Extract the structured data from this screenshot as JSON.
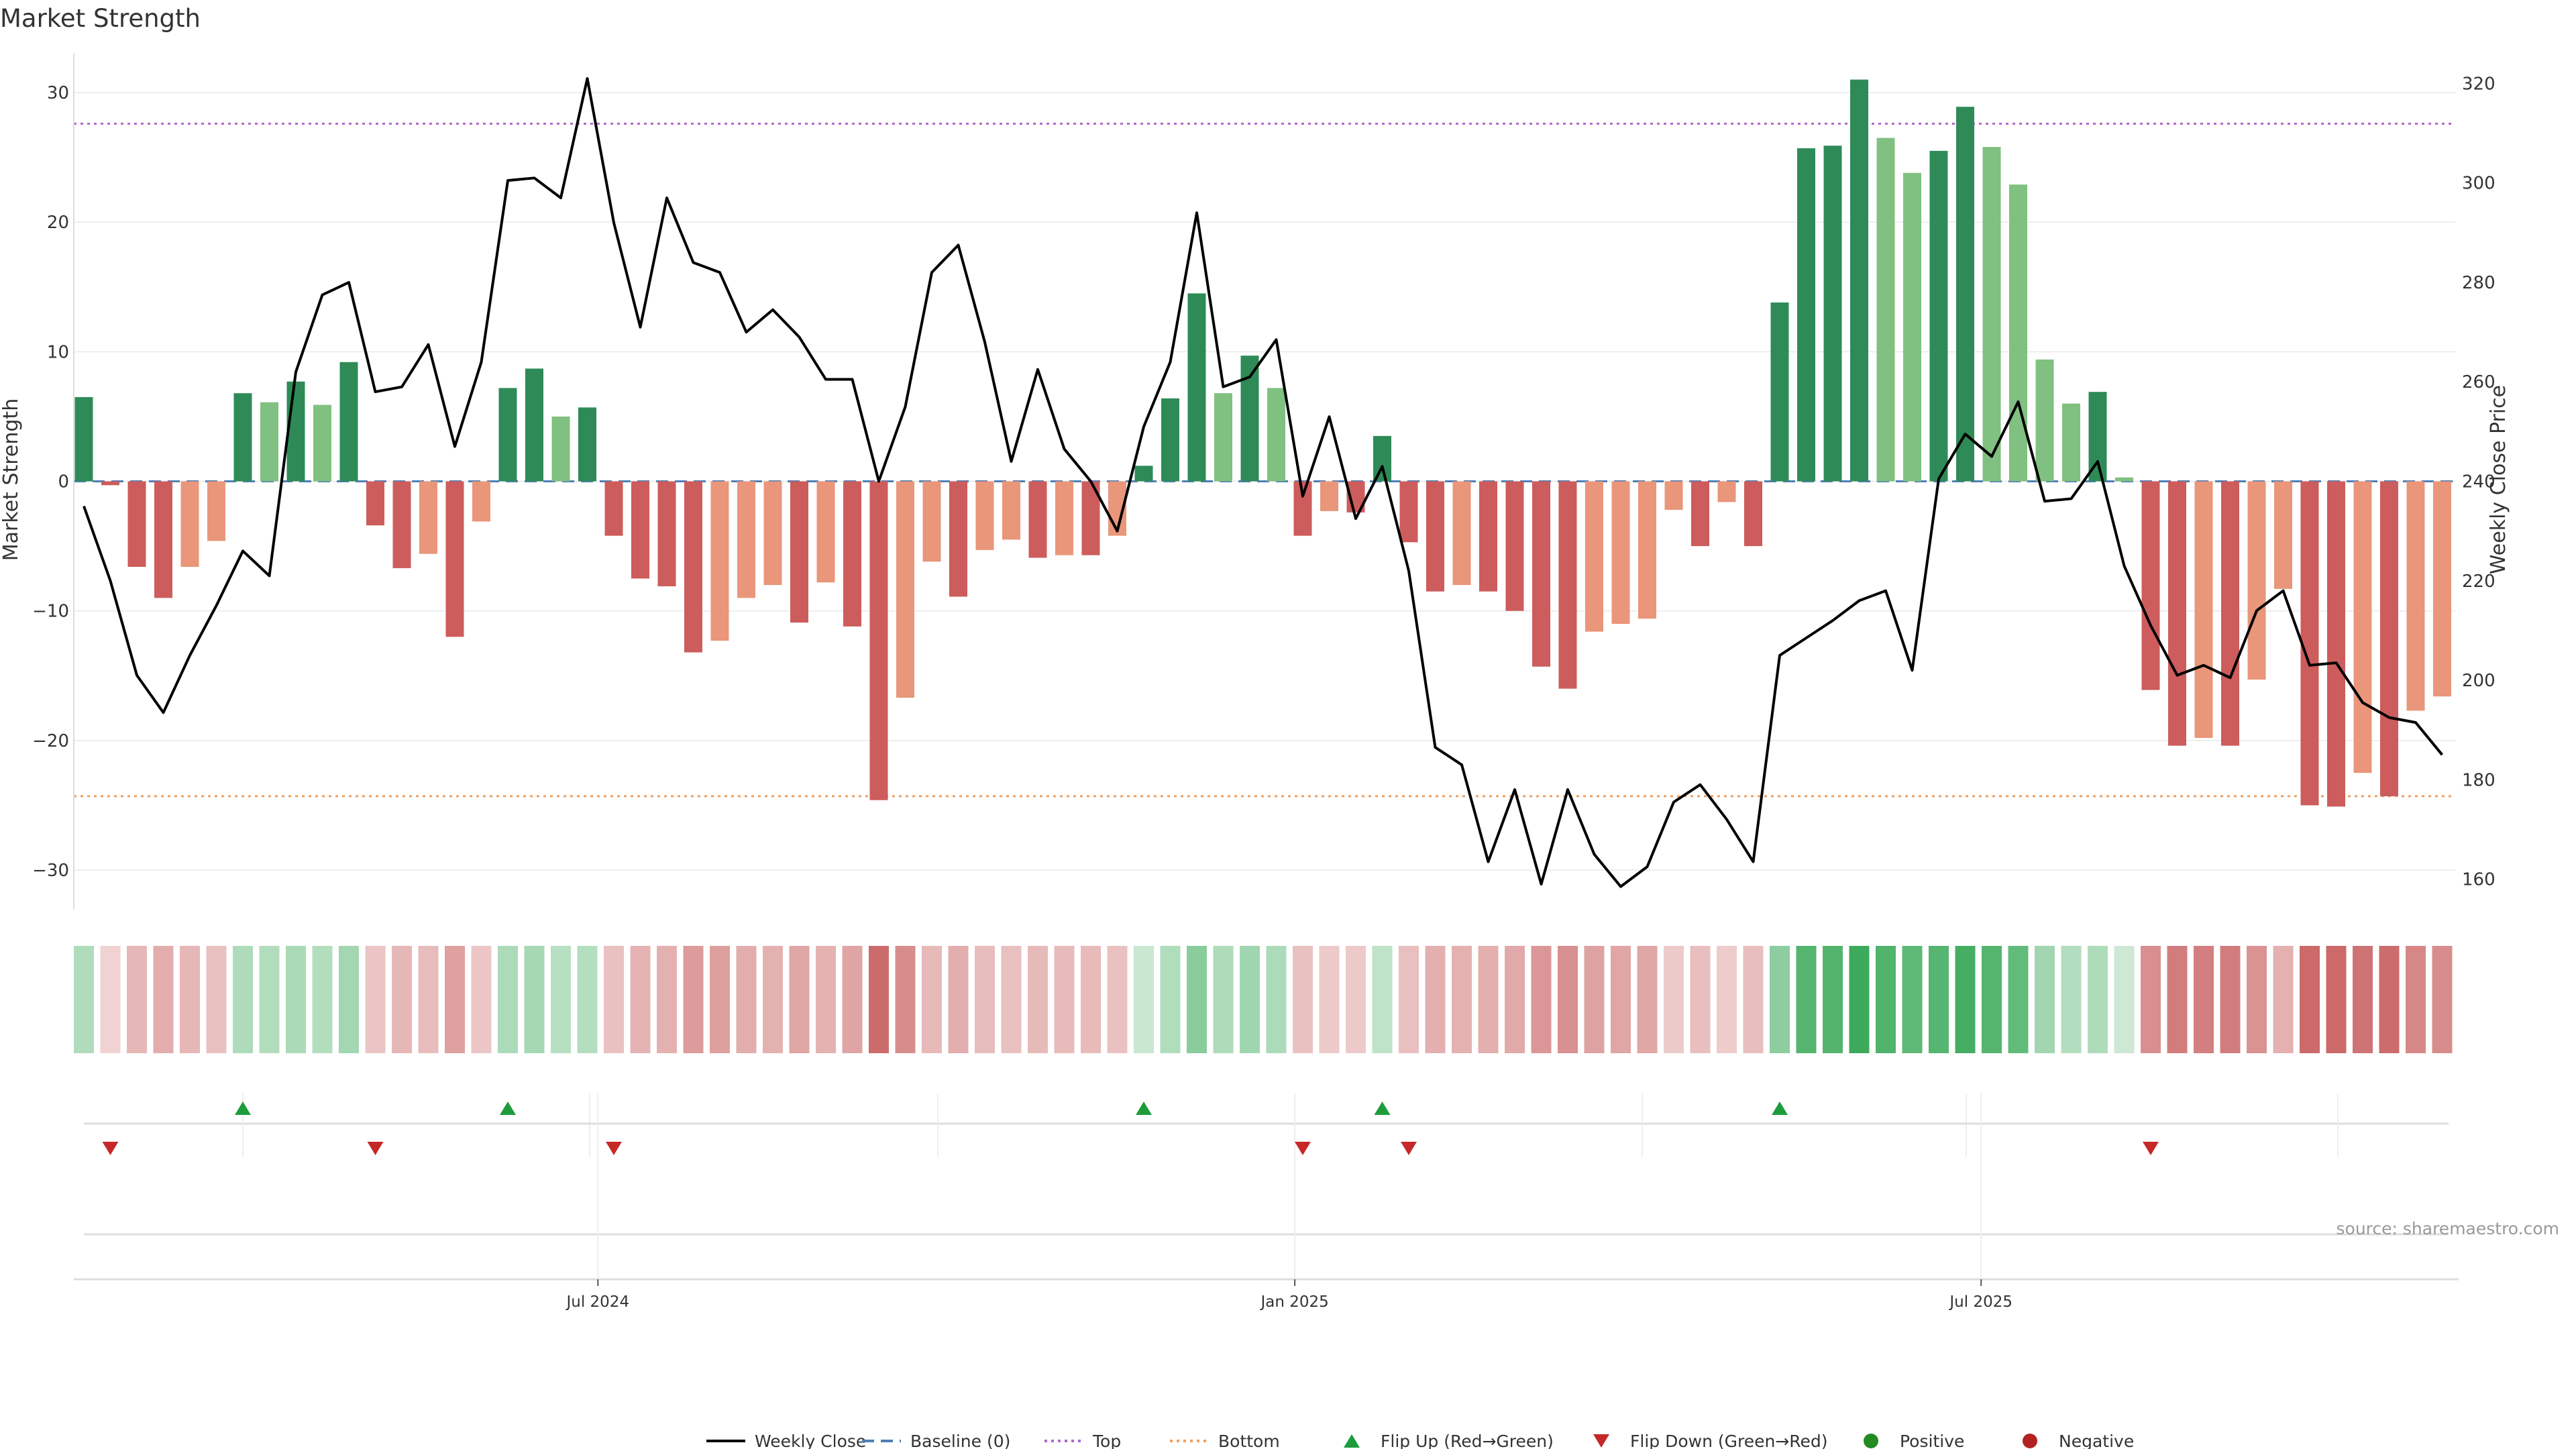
{
  "chart_data": {
    "type": "bar+line",
    "title": "Market Strength",
    "ylabel_left": "Market Strength",
    "ylabel_right": "Weekly Close Price",
    "ylim_left": [
      -33,
      33
    ],
    "ylim_right": [
      154,
      326
    ],
    "yticks_left": [
      30,
      20,
      10,
      0,
      -10,
      -20,
      -30
    ],
    "ytick_labels_left": [
      "30",
      "20",
      "10",
      "0",
      "−10",
      "−20",
      "−30"
    ],
    "yticks_right": [
      320,
      300,
      280,
      260,
      240,
      220,
      200,
      180,
      160
    ],
    "ytick_labels_right": [
      "320",
      "300",
      "280",
      "260",
      "240",
      "220",
      "200",
      "180",
      "160"
    ],
    "x_ticks": [
      {
        "label": "Jul 2024",
        "week": 19.4
      },
      {
        "label": "Jan 2025",
        "week": 45.7
      },
      {
        "label": "Jul 2025",
        "week": 71.6
      }
    ],
    "top_line": 27.6,
    "bottom_line": -24.3,
    "baseline": 0,
    "strength": [
      6.5,
      -0.3,
      -6.6,
      -9.0,
      -6.6,
      -4.6,
      6.8,
      6.1,
      7.7,
      5.9,
      9.2,
      -3.4,
      -6.7,
      -5.6,
      -12.0,
      -3.1,
      7.2,
      8.7,
      5.0,
      5.7,
      -4.2,
      -7.5,
      -8.1,
      -13.2,
      -12.3,
      -9.0,
      -8.0,
      -10.9,
      -7.8,
      -11.2,
      -24.6,
      -16.7,
      -6.2,
      -8.9,
      -5.3,
      -4.5,
      -5.9,
      -5.7,
      -5.7,
      -4.2,
      1.2,
      6.4,
      14.5,
      6.8,
      9.7,
      7.2,
      -4.2,
      -2.3,
      -2.4,
      3.5,
      -4.7,
      -8.5,
      -8.0,
      -8.5,
      -10.0,
      -14.3,
      -16.0,
      -11.6,
      -11.0,
      -10.6,
      -2.2,
      -5.0,
      -1.6,
      -5.0,
      13.8,
      25.7,
      25.9,
      31.0,
      26.5,
      23.8,
      25.5,
      28.9,
      25.8,
      22.9,
      9.4,
      6.0,
      6.9,
      0.3,
      -16.1,
      -20.4,
      -19.8,
      -20.4,
      -15.3,
      -8.3,
      -25.0,
      -25.1,
      -22.5,
      -24.3,
      -17.7,
      -16.6
    ],
    "weekly_close": [
      235.0,
      220.0,
      201.0,
      193.5,
      205.0,
      215.0,
      226.0,
      221.0,
      262.0,
      277.5,
      280.0,
      258.0,
      259.0,
      267.5,
      247.0,
      264.0,
      300.5,
      301.0,
      297.0,
      321.0,
      292.0,
      271.0,
      297.0,
      284.0,
      282.0,
      270.0,
      274.5,
      269.0,
      260.5,
      260.5,
      240.0,
      255.0,
      282.0,
      287.5,
      268.0,
      244.0,
      262.5,
      246.5,
      240.0,
      230.0,
      251.0,
      264.0,
      294.0,
      259.0,
      261.0,
      268.5,
      237.0,
      253.0,
      232.5,
      243.0,
      222.0,
      186.5,
      183.0,
      163.5,
      178.0,
      159.0,
      178.0,
      165.0,
      158.5,
      162.5,
      175.5,
      179.0,
      172.0,
      163.5,
      205.0,
      208.5,
      212.0,
      216.0,
      218.0,
      202.0,
      240.5,
      249.5,
      245.0,
      256.0,
      236.0,
      236.5,
      244.0,
      223.0,
      211.0,
      201.0,
      203.0,
      200.5,
      214.0,
      218.0,
      203.0,
      203.5,
      195.5,
      192.5,
      191.5,
      185.0
    ],
    "flips_up_weeks": [
      6,
      16,
      40,
      49,
      64
    ],
    "flips_down_weeks": [
      1,
      11,
      20,
      46,
      50,
      78
    ],
    "colors": {
      "strong_green": "#2e8b57",
      "light_green": "#80c080",
      "strong_red": "#cd5c5c",
      "light_red": "#e9967a",
      "line": "#000000",
      "baseline": "#4f7fb5",
      "top": "#b266cc",
      "bottom": "#f0a060",
      "flip_up": "#1e9c3c",
      "flip_down": "#c62828",
      "positive": "#228b22",
      "negative": "#b22222"
    },
    "legend": [
      {
        "label": "Weekly Close",
        "kind": "line"
      },
      {
        "label": "Baseline (0)",
        "kind": "dash"
      },
      {
        "label": "Top",
        "kind": "dot"
      },
      {
        "label": "Bottom",
        "kind": "dot2"
      },
      {
        "label": "Flip Up (Red→Green)",
        "kind": "tri-up"
      },
      {
        "label": "Flip Down (Green→Red)",
        "kind": "tri-down"
      },
      {
        "label": "Positive",
        "kind": "circle-pos"
      },
      {
        "label": "Negative",
        "kind": "circle-neg"
      }
    ],
    "source": "source: sharemaestro.com"
  }
}
